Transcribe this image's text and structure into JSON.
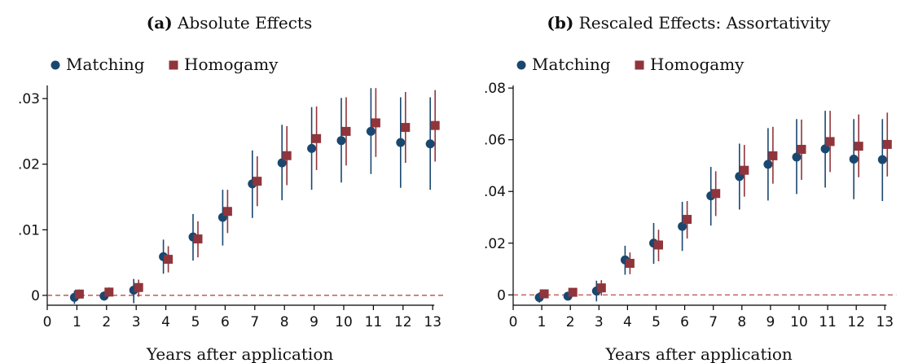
{
  "colors": {
    "matching": "#1a476f",
    "homogamy": "#90353b",
    "zero_line": "#b03a3a",
    "axis": "#000000"
  },
  "chart_data": [
    {
      "type": "scatter",
      "panel_tag": "(a)",
      "title": "Absolute Effects",
      "xlabel": "Years after application",
      "ylabel": "",
      "xlim": [
        0,
        13
      ],
      "ylim": [
        -0.0015,
        0.032
      ],
      "xticks": [
        0,
        1,
        2,
        3,
        4,
        5,
        6,
        7,
        8,
        9,
        10,
        11,
        12,
        13
      ],
      "xtick_labels": [
        "0",
        "1",
        "2",
        "3",
        "4",
        "5",
        "6",
        "7",
        "8",
        "9",
        "10",
        "11",
        "12",
        "13"
      ],
      "yticks": [
        0,
        0.01,
        0.02,
        0.03
      ],
      "ytick_labels": [
        "0",
        ".01",
        ".02",
        ".03"
      ],
      "reference_line": 0,
      "legend": {
        "placement": "top-left",
        "entries": [
          "Matching",
          "Homogamy"
        ]
      },
      "series": [
        {
          "name": "Matching",
          "marker": "circle",
          "x": [
            1,
            2,
            3,
            4,
            5,
            6,
            7,
            8,
            9,
            10,
            11,
            12,
            13
          ],
          "y": [
            -0.0003,
            -0.0001,
            0.0008,
            0.0059,
            0.0089,
            0.0119,
            0.017,
            0.0202,
            0.0224,
            0.0236,
            0.025,
            0.0233,
            0.0231
          ],
          "ci_low": [
            -0.0013,
            -0.0008,
            -0.0012,
            0.0033,
            0.0053,
            0.0076,
            0.0118,
            0.0145,
            0.0161,
            0.0172,
            0.0185,
            0.0164,
            0.0161
          ],
          "ci_high": [
            0.0007,
            0.0006,
            0.0025,
            0.0085,
            0.0124,
            0.0161,
            0.0221,
            0.026,
            0.0287,
            0.0301,
            0.0316,
            0.0302,
            0.0302
          ]
        },
        {
          "name": "Homogamy",
          "marker": "square",
          "x": [
            1,
            2,
            3,
            4,
            5,
            6,
            7,
            8,
            9,
            10,
            11,
            12,
            13
          ],
          "y": [
            0.0002,
            0.0005,
            0.0012,
            0.0055,
            0.0086,
            0.0128,
            0.0174,
            0.0213,
            0.0239,
            0.025,
            0.0263,
            0.0256,
            0.0259
          ],
          "ci_low": [
            -0.0005,
            -0.0002,
            -0.0002,
            0.0035,
            0.0058,
            0.0095,
            0.0136,
            0.0168,
            0.0191,
            0.0198,
            0.0211,
            0.0202,
            0.0204
          ],
          "ci_high": [
            0.0009,
            0.0012,
            0.0024,
            0.0075,
            0.0113,
            0.0161,
            0.0212,
            0.0258,
            0.0288,
            0.0302,
            0.0316,
            0.031,
            0.0313
          ]
        }
      ]
    },
    {
      "type": "scatter",
      "panel_tag": "(b)",
      "title": "Rescaled Effects: Assortativity",
      "xlabel": "Years after application",
      "ylabel": "",
      "xlim": [
        0,
        13
      ],
      "ylim": [
        -0.004,
        0.081
      ],
      "xticks": [
        0,
        1,
        2,
        3,
        4,
        5,
        6,
        7,
        8,
        9,
        10,
        11,
        12,
        13
      ],
      "xtick_labels": [
        "0",
        "1",
        "2",
        "3",
        "4",
        "5",
        "6",
        "7",
        "8",
        "9",
        "10",
        "11",
        "12",
        "13"
      ],
      "yticks": [
        0,
        0.02,
        0.04,
        0.06,
        0.08
      ],
      "ytick_labels": [
        "0",
        ".02",
        ".04",
        ".06",
        ".08"
      ],
      "reference_line": 0,
      "legend": {
        "placement": "top-left",
        "entries": [
          "Matching",
          "Homogamy"
        ]
      },
      "series": [
        {
          "name": "Matching",
          "marker": "circle",
          "x": [
            1,
            2,
            3,
            4,
            5,
            6,
            7,
            8,
            9,
            10,
            11,
            12,
            13
          ],
          "y": [
            -0.001,
            -0.0005,
            0.0015,
            0.0135,
            0.02,
            0.0265,
            0.0383,
            0.0458,
            0.0505,
            0.0533,
            0.0565,
            0.0525,
            0.0523
          ],
          "ci_low": [
            -0.003,
            -0.002,
            -0.0025,
            0.0078,
            0.012,
            0.017,
            0.0268,
            0.033,
            0.0365,
            0.039,
            0.0415,
            0.037,
            0.0363
          ],
          "ci_high": [
            0.001,
            0.001,
            0.0055,
            0.019,
            0.0278,
            0.036,
            0.0495,
            0.0585,
            0.0645,
            0.068,
            0.0712,
            0.068,
            0.068
          ]
        },
        {
          "name": "Homogamy",
          "marker": "square",
          "x": [
            1,
            2,
            3,
            4,
            5,
            6,
            7,
            8,
            9,
            10,
            11,
            12,
            13
          ],
          "y": [
            0.0004,
            0.001,
            0.0027,
            0.0122,
            0.0193,
            0.0292,
            0.0392,
            0.0482,
            0.0538,
            0.0563,
            0.0593,
            0.0575,
            0.0582
          ],
          "ci_low": [
            -0.001,
            -0.0003,
            -0.0003,
            0.008,
            0.013,
            0.0218,
            0.0305,
            0.038,
            0.043,
            0.0445,
            0.0475,
            0.0455,
            0.0458
          ],
          "ci_high": [
            0.0018,
            0.0023,
            0.0057,
            0.0164,
            0.0252,
            0.0363,
            0.0478,
            0.058,
            0.065,
            0.0678,
            0.0712,
            0.0698,
            0.0705
          ]
        }
      ]
    }
  ]
}
